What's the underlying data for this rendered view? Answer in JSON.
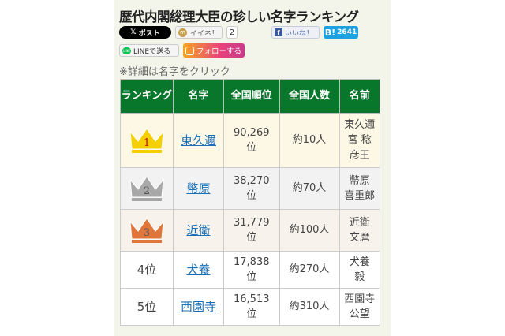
{
  "title": "歴代内閣総理大臣の珍しい名字ランキング",
  "share": {
    "post": "ポスト",
    "mixi": "イイネ！",
    "mixi_count": "2",
    "facebook": "いいね！",
    "hatena_label": "B!",
    "hatena_count": "2641",
    "line": "LINEで送る",
    "instagram": "フォローする"
  },
  "note": "※詳細は名字をクリック",
  "table": {
    "headers": [
      "ランキング",
      "名字",
      "全国順位",
      "全国人数",
      "名前"
    ],
    "rows": [
      {
        "rank": "1",
        "surname": "東久邇",
        "national_rank": "90,269位",
        "population": "約10人",
        "name": "東久邇宮 稔彦王",
        "crown": "gold"
      },
      {
        "rank": "2",
        "surname": "幣原",
        "national_rank": "38,270位",
        "population": "約70人",
        "name": "幣原 喜重郎",
        "crown": "silver"
      },
      {
        "rank": "3",
        "surname": "近衛",
        "national_rank": "31,779位",
        "population": "約100人",
        "name": "近衛 文麿",
        "crown": "bronze"
      },
      {
        "rank": "4位",
        "surname": "犬養",
        "national_rank": "17,838位",
        "population": "約270人",
        "name": "犬養 毅"
      },
      {
        "rank": "5位",
        "surname": "西園寺",
        "national_rank": "16,513位",
        "population": "約310人",
        "name": "西園寺 公望"
      }
    ]
  },
  "colors": {
    "header": "#08772b",
    "link": "#1b6fb5",
    "gold": "#f5d000",
    "silver": "#a8a8a8",
    "bronze": "#e0763a"
  }
}
